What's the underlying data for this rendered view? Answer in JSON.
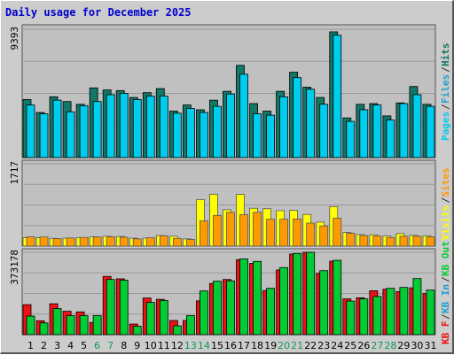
{
  "title": "Daily usage for December 2025",
  "colors": {
    "pages": "#00ccee",
    "files": "#1a9fcc",
    "hits": "#117766",
    "sites": "#ff9900",
    "visits": "#ffff00",
    "kb_in": "#00cc33",
    "kb_out": "#00aa00",
    "kb_f": "#ee1111",
    "weekend_day": "#119955",
    "weekday": "#000000"
  },
  "chart_data": [
    {
      "type": "bar",
      "ylabel_max": "9393",
      "ymax": 9393,
      "legend": [
        {
          "text": "Pages",
          "color": "#00ccee"
        },
        {
          "text": "/",
          "color": "#333333"
        },
        {
          "text": "Files",
          "color": "#1a9fcc"
        },
        {
          "text": "/",
          "color": "#333333"
        },
        {
          "text": "Hits",
          "color": "#117766"
        }
      ],
      "series": [
        {
          "name": "Hits",
          "values": [
            4250,
            3300,
            4450,
            4100,
            3900,
            5100,
            4950,
            4900,
            4400,
            4750,
            5050,
            3400,
            3850,
            3500,
            4200,
            4850,
            6750,
            3950,
            3400,
            4850,
            6250,
            5150,
            4400,
            9200,
            2900,
            3900,
            3950,
            3050,
            4000,
            5200,
            3900
          ]
        },
        {
          "name": "Pages",
          "values": [
            3850,
            3200,
            4200,
            3350,
            3800,
            4100,
            4600,
            4700,
            4250,
            4500,
            4500,
            3250,
            3600,
            3300,
            3750,
            4650,
            6100,
            3200,
            3100,
            4450,
            5850,
            5000,
            3900,
            8950,
            2650,
            3500,
            3850,
            2750,
            3950,
            4600,
            3750
          ]
        }
      ]
    },
    {
      "type": "bar",
      "ylabel_max": "1717",
      "ymax": 1717,
      "legend": [
        {
          "text": "Visits",
          "color": "#ffff00"
        },
        {
          "text": "/",
          "color": "#333333"
        },
        {
          "text": "Sites",
          "color": "#ff9900"
        }
      ],
      "series": [
        {
          "name": "Visits",
          "values": [
            175,
            175,
            160,
            165,
            175,
            195,
            205,
            200,
            165,
            165,
            220,
            205,
            150,
            970,
            1080,
            760,
            1080,
            790,
            780,
            740,
            745,
            660,
            500,
            825,
            285,
            240,
            235,
            210,
            260,
            225,
            215
          ]
        },
        {
          "name": "Sites",
          "values": [
            195,
            190,
            155,
            170,
            180,
            190,
            195,
            185,
            150,
            175,
            215,
            160,
            140,
            525,
            640,
            705,
            655,
            705,
            560,
            560,
            565,
            480,
            420,
            580,
            270,
            220,
            210,
            180,
            205,
            205,
            190
          ]
        }
      ]
    },
    {
      "type": "bar",
      "ylabel_max": "373178",
      "ymax": 373178,
      "legend": [
        {
          "text": "KB F",
          "color": "#ee1111"
        },
        {
          "text": "/",
          "color": "#333333"
        },
        {
          "text": "KB In",
          "color": "#1a9fcc"
        },
        {
          "text": "/",
          "color": "#333333"
        },
        {
          "text": "KB Out",
          "color": "#00cc33"
        }
      ],
      "series": [
        {
          "name": "KB F",
          "values": [
            136000,
            63000,
            140000,
            106000,
            103000,
            55000,
            264000,
            253000,
            48000,
            166000,
            160000,
            64000,
            64000,
            153000,
            232000,
            250000,
            340000,
            323000,
            200000,
            293000,
            365000,
            373178,
            278000,
            333000,
            162000,
            167000,
            199000,
            206000,
            195000,
            212000,
            186000
          ]
        },
        {
          "name": "KB Out",
          "values": [
            84000,
            53000,
            118000,
            86000,
            86000,
            86000,
            250000,
            247000,
            38000,
            146000,
            155000,
            40000,
            86000,
            198000,
            242000,
            244000,
            343000,
            332000,
            210000,
            304000,
            368000,
            373178,
            290000,
            337000,
            152000,
            162000,
            173000,
            210000,
            214000,
            254000,
            202000
          ]
        }
      ]
    }
  ],
  "days": [
    "1",
    "2",
    "3",
    "4",
    "5",
    "6",
    "7",
    "8",
    "9",
    "10",
    "11",
    "12",
    "13",
    "14",
    "15",
    "16",
    "17",
    "18",
    "19",
    "20",
    "21",
    "22",
    "23",
    "24",
    "25",
    "26",
    "27",
    "28",
    "29",
    "30",
    "31"
  ],
  "weekend_days": [
    6,
    7,
    13,
    14,
    20,
    21,
    27,
    28
  ]
}
